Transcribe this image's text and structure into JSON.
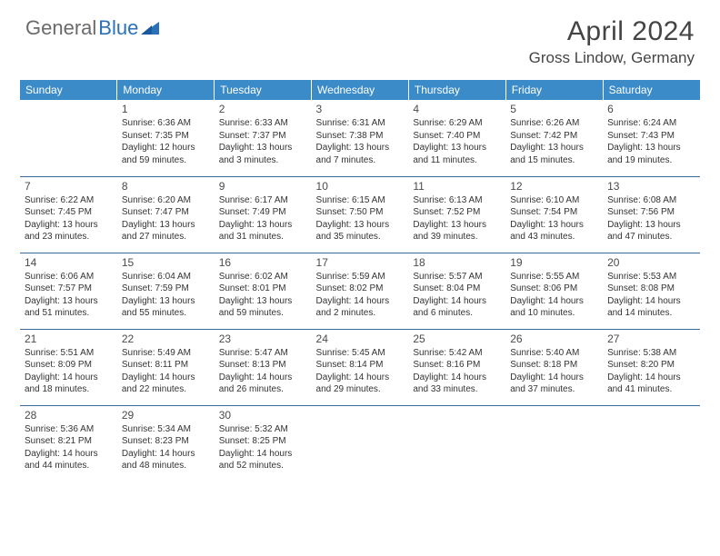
{
  "brand": {
    "part1": "General",
    "part2": "Blue"
  },
  "title": "April 2024",
  "location": "Gross Lindow, Germany",
  "colors": {
    "header_bg": "#3b8bc9",
    "header_text": "#ffffff",
    "border": "#3b6a94",
    "brand_gray": "#6a6a6a",
    "brand_blue": "#2a71b8",
    "text": "#333333",
    "title_color": "#444444"
  },
  "dayHeaders": [
    "Sunday",
    "Monday",
    "Tuesday",
    "Wednesday",
    "Thursday",
    "Friday",
    "Saturday"
  ],
  "weeks": [
    [
      null,
      {
        "n": "1",
        "sr": "Sunrise: 6:36 AM",
        "ss": "Sunset: 7:35 PM",
        "d1": "Daylight: 12 hours",
        "d2": "and 59 minutes."
      },
      {
        "n": "2",
        "sr": "Sunrise: 6:33 AM",
        "ss": "Sunset: 7:37 PM",
        "d1": "Daylight: 13 hours",
        "d2": "and 3 minutes."
      },
      {
        "n": "3",
        "sr": "Sunrise: 6:31 AM",
        "ss": "Sunset: 7:38 PM",
        "d1": "Daylight: 13 hours",
        "d2": "and 7 minutes."
      },
      {
        "n": "4",
        "sr": "Sunrise: 6:29 AM",
        "ss": "Sunset: 7:40 PM",
        "d1": "Daylight: 13 hours",
        "d2": "and 11 minutes."
      },
      {
        "n": "5",
        "sr": "Sunrise: 6:26 AM",
        "ss": "Sunset: 7:42 PM",
        "d1": "Daylight: 13 hours",
        "d2": "and 15 minutes."
      },
      {
        "n": "6",
        "sr": "Sunrise: 6:24 AM",
        "ss": "Sunset: 7:43 PM",
        "d1": "Daylight: 13 hours",
        "d2": "and 19 minutes."
      }
    ],
    [
      {
        "n": "7",
        "sr": "Sunrise: 6:22 AM",
        "ss": "Sunset: 7:45 PM",
        "d1": "Daylight: 13 hours",
        "d2": "and 23 minutes."
      },
      {
        "n": "8",
        "sr": "Sunrise: 6:20 AM",
        "ss": "Sunset: 7:47 PM",
        "d1": "Daylight: 13 hours",
        "d2": "and 27 minutes."
      },
      {
        "n": "9",
        "sr": "Sunrise: 6:17 AM",
        "ss": "Sunset: 7:49 PM",
        "d1": "Daylight: 13 hours",
        "d2": "and 31 minutes."
      },
      {
        "n": "10",
        "sr": "Sunrise: 6:15 AM",
        "ss": "Sunset: 7:50 PM",
        "d1": "Daylight: 13 hours",
        "d2": "and 35 minutes."
      },
      {
        "n": "11",
        "sr": "Sunrise: 6:13 AM",
        "ss": "Sunset: 7:52 PM",
        "d1": "Daylight: 13 hours",
        "d2": "and 39 minutes."
      },
      {
        "n": "12",
        "sr": "Sunrise: 6:10 AM",
        "ss": "Sunset: 7:54 PM",
        "d1": "Daylight: 13 hours",
        "d2": "and 43 minutes."
      },
      {
        "n": "13",
        "sr": "Sunrise: 6:08 AM",
        "ss": "Sunset: 7:56 PM",
        "d1": "Daylight: 13 hours",
        "d2": "and 47 minutes."
      }
    ],
    [
      {
        "n": "14",
        "sr": "Sunrise: 6:06 AM",
        "ss": "Sunset: 7:57 PM",
        "d1": "Daylight: 13 hours",
        "d2": "and 51 minutes."
      },
      {
        "n": "15",
        "sr": "Sunrise: 6:04 AM",
        "ss": "Sunset: 7:59 PM",
        "d1": "Daylight: 13 hours",
        "d2": "and 55 minutes."
      },
      {
        "n": "16",
        "sr": "Sunrise: 6:02 AM",
        "ss": "Sunset: 8:01 PM",
        "d1": "Daylight: 13 hours",
        "d2": "and 59 minutes."
      },
      {
        "n": "17",
        "sr": "Sunrise: 5:59 AM",
        "ss": "Sunset: 8:02 PM",
        "d1": "Daylight: 14 hours",
        "d2": "and 2 minutes."
      },
      {
        "n": "18",
        "sr": "Sunrise: 5:57 AM",
        "ss": "Sunset: 8:04 PM",
        "d1": "Daylight: 14 hours",
        "d2": "and 6 minutes."
      },
      {
        "n": "19",
        "sr": "Sunrise: 5:55 AM",
        "ss": "Sunset: 8:06 PM",
        "d1": "Daylight: 14 hours",
        "d2": "and 10 minutes."
      },
      {
        "n": "20",
        "sr": "Sunrise: 5:53 AM",
        "ss": "Sunset: 8:08 PM",
        "d1": "Daylight: 14 hours",
        "d2": "and 14 minutes."
      }
    ],
    [
      {
        "n": "21",
        "sr": "Sunrise: 5:51 AM",
        "ss": "Sunset: 8:09 PM",
        "d1": "Daylight: 14 hours",
        "d2": "and 18 minutes."
      },
      {
        "n": "22",
        "sr": "Sunrise: 5:49 AM",
        "ss": "Sunset: 8:11 PM",
        "d1": "Daylight: 14 hours",
        "d2": "and 22 minutes."
      },
      {
        "n": "23",
        "sr": "Sunrise: 5:47 AM",
        "ss": "Sunset: 8:13 PM",
        "d1": "Daylight: 14 hours",
        "d2": "and 26 minutes."
      },
      {
        "n": "24",
        "sr": "Sunrise: 5:45 AM",
        "ss": "Sunset: 8:14 PM",
        "d1": "Daylight: 14 hours",
        "d2": "and 29 minutes."
      },
      {
        "n": "25",
        "sr": "Sunrise: 5:42 AM",
        "ss": "Sunset: 8:16 PM",
        "d1": "Daylight: 14 hours",
        "d2": "and 33 minutes."
      },
      {
        "n": "26",
        "sr": "Sunrise: 5:40 AM",
        "ss": "Sunset: 8:18 PM",
        "d1": "Daylight: 14 hours",
        "d2": "and 37 minutes."
      },
      {
        "n": "27",
        "sr": "Sunrise: 5:38 AM",
        "ss": "Sunset: 8:20 PM",
        "d1": "Daylight: 14 hours",
        "d2": "and 41 minutes."
      }
    ],
    [
      {
        "n": "28",
        "sr": "Sunrise: 5:36 AM",
        "ss": "Sunset: 8:21 PM",
        "d1": "Daylight: 14 hours",
        "d2": "and 44 minutes."
      },
      {
        "n": "29",
        "sr": "Sunrise: 5:34 AM",
        "ss": "Sunset: 8:23 PM",
        "d1": "Daylight: 14 hours",
        "d2": "and 48 minutes."
      },
      {
        "n": "30",
        "sr": "Sunrise: 5:32 AM",
        "ss": "Sunset: 8:25 PM",
        "d1": "Daylight: 14 hours",
        "d2": "and 52 minutes."
      },
      null,
      null,
      null,
      null
    ]
  ]
}
